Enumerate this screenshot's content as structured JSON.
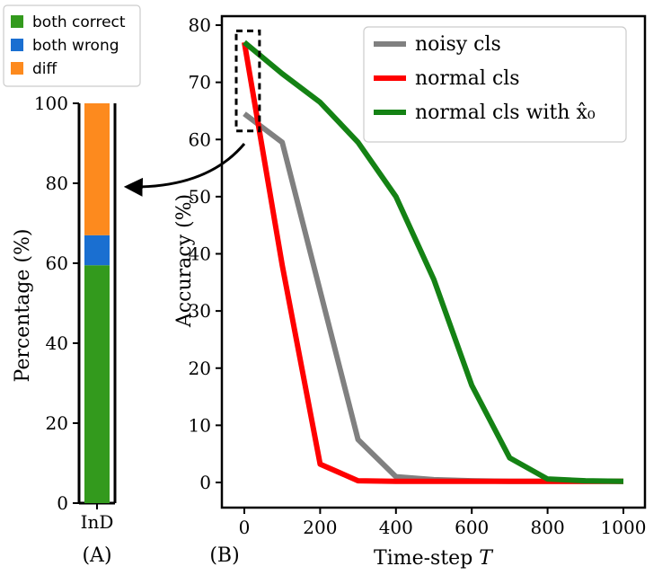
{
  "chart_data": [
    {
      "type": "bar",
      "panel_label": "(A)",
      "categories": [
        "InD"
      ],
      "series": [
        {
          "name": "both correct",
          "color": "#339a1d",
          "values": [
            59.5
          ]
        },
        {
          "name": "both wrong",
          "color": "#1a6fd1",
          "values": [
            7.5
          ]
        },
        {
          "name": "diff",
          "color": "#fd8a1e",
          "values": [
            33.0
          ]
        }
      ],
      "stacked": true,
      "xlabel": "",
      "ylabel": "Percentage (%)",
      "ylim": [
        0,
        100
      ],
      "yticks": [
        "0",
        "20",
        "40",
        "60",
        "80",
        "100"
      ],
      "legend_position": "top-left"
    },
    {
      "type": "line",
      "panel_label": "(B)",
      "x": [
        0,
        100,
        200,
        300,
        400,
        500,
        600,
        700,
        800,
        900,
        1000
      ],
      "series": [
        {
          "name": "noisy cls",
          "color": "#808080",
          "values": [
            64.5,
            59.5,
            33.5,
            7.5,
            1.0,
            0.5,
            0.3,
            0.2,
            0.2,
            0.2,
            0.2
          ]
        },
        {
          "name": "normal cls",
          "color": "#ff0000",
          "values": [
            77.0,
            38.0,
            3.2,
            0.3,
            0.2,
            0.2,
            0.2,
            0.2,
            0.2,
            0.2,
            0.2
          ]
        },
        {
          "name": "normal cls with x̂₀",
          "color": "#148214",
          "values": [
            77.0,
            71.5,
            66.5,
            59.5,
            50.0,
            35.5,
            17.0,
            4.3,
            0.6,
            0.3,
            0.2
          ]
        }
      ],
      "xlabel": "Time-step T",
      "ylabel": "Accuracy (%)",
      "xlim": [
        0,
        1000
      ],
      "ylim": [
        0,
        80
      ],
      "xticks": [
        "0",
        "200",
        "400",
        "600",
        "800",
        "1000"
      ],
      "yticks": [
        "0",
        "10",
        "20",
        "30",
        "40",
        "50",
        "60",
        "70",
        "80"
      ],
      "legend_position": "top-right",
      "highlight_box": {
        "x_range": [
          0,
          40
        ],
        "y_range": [
          61.5,
          79.0
        ]
      }
    }
  ]
}
